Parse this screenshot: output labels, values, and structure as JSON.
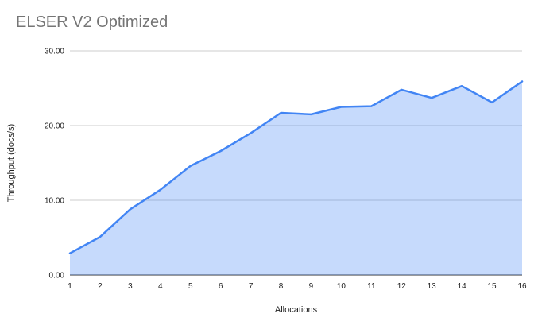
{
  "chart_data": {
    "type": "area",
    "title": "ELSER V2 Optimized",
    "xlabel": "Allocations",
    "ylabel": "Throughput (docs/s)",
    "categories": [
      "1",
      "2",
      "3",
      "4",
      "5",
      "6",
      "7",
      "8",
      "9",
      "10",
      "11",
      "12",
      "13",
      "14",
      "15",
      "16"
    ],
    "series": [
      {
        "name": "ELSER V2 Optimized",
        "values": [
          2.9,
          5.1,
          8.8,
          11.4,
          14.6,
          16.6,
          19.0,
          21.7,
          21.5,
          22.5,
          22.6,
          24.8,
          23.7,
          25.3,
          23.1,
          25.9
        ]
      }
    ],
    "ylim": [
      0,
      30
    ],
    "y_ticks": [
      0,
      10,
      20,
      30
    ],
    "y_tick_labels": [
      "0.00",
      "10.00",
      "20.00",
      "30.00"
    ],
    "grid": true,
    "legend_position": "none",
    "colors": {
      "line": "#4285f4",
      "fill": "rgba(66,133,244,0.3)",
      "gridline": "#cccccc",
      "axis_line": "#333333",
      "title_text": "#757575",
      "tick_text": "#222222"
    }
  }
}
